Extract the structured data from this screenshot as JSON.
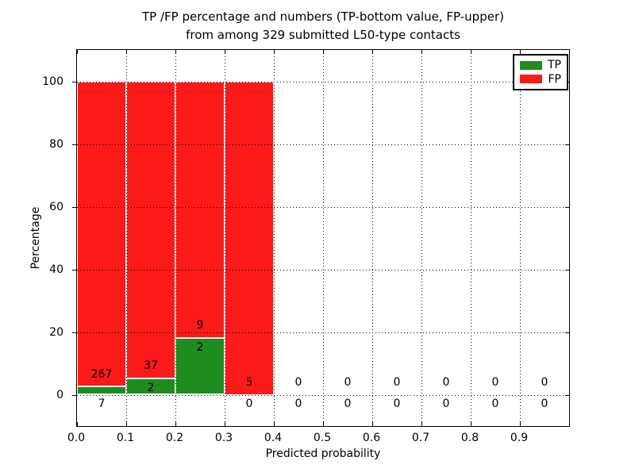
{
  "chart_data": {
    "type": "bar",
    "stacked": true,
    "title_line1": "TP /FP percentage and numbers (TP-bottom value, FP-upper)",
    "title_line2": "from among 329 submitted L50-type contacts",
    "total_submitted": 329,
    "xlabel": "Predicted probability",
    "ylabel": "Percentage",
    "xlim": [
      0.0,
      1.0
    ],
    "ylim": [
      -10,
      110
    ],
    "xticks": [
      0.0,
      0.1,
      0.2,
      0.3,
      0.4,
      0.5,
      0.6,
      0.7,
      0.8,
      0.9
    ],
    "xtick_labels": [
      "0.0",
      "0.1",
      "0.2",
      "0.3",
      "0.4",
      "0.5",
      "0.6",
      "0.7",
      "0.8",
      "0.9"
    ],
    "yticks": [
      0,
      20,
      40,
      60,
      80,
      100
    ],
    "ytick_labels": [
      "0",
      "20",
      "40",
      "60",
      "80",
      "100"
    ],
    "grid": "dotted",
    "legend": {
      "position": "upper right",
      "items": [
        {
          "label": "TP",
          "color": "#1e8c1e"
        },
        {
          "label": "FP",
          "color": "#fb1a1a"
        }
      ]
    },
    "series": [
      {
        "name": "TP",
        "color": "#1e8c1e",
        "values_pct": [
          2.55,
          5.13,
          18.18,
          0,
          0,
          0,
          0,
          0,
          0,
          0
        ]
      },
      {
        "name": "FP",
        "color": "#fb1a1a",
        "values_pct": [
          97.45,
          94.87,
          81.82,
          100,
          0,
          0,
          0,
          0,
          0,
          0
        ]
      }
    ],
    "bins": [
      {
        "range": [
          0.0,
          0.1
        ],
        "tp": 7,
        "fp": 267,
        "tp_pct": 2.55,
        "fp_pct": 97.45
      },
      {
        "range": [
          0.1,
          0.2
        ],
        "tp": 2,
        "fp": 37,
        "tp_pct": 5.13,
        "fp_pct": 94.87
      },
      {
        "range": [
          0.2,
          0.3
        ],
        "tp": 2,
        "fp": 9,
        "tp_pct": 18.18,
        "fp_pct": 81.82
      },
      {
        "range": [
          0.3,
          0.4
        ],
        "tp": 0,
        "fp": 5,
        "tp_pct": 0,
        "fp_pct": 100
      },
      {
        "range": [
          0.4,
          0.5
        ],
        "tp": 0,
        "fp": 0,
        "tp_pct": 0,
        "fp_pct": 0
      },
      {
        "range": [
          0.5,
          0.6
        ],
        "tp": 0,
        "fp": 0,
        "tp_pct": 0,
        "fp_pct": 0
      },
      {
        "range": [
          0.6,
          0.7
        ],
        "tp": 0,
        "fp": 0,
        "tp_pct": 0,
        "fp_pct": 0
      },
      {
        "range": [
          0.7,
          0.8
        ],
        "tp": 0,
        "fp": 0,
        "tp_pct": 0,
        "fp_pct": 0
      },
      {
        "range": [
          0.8,
          0.9
        ],
        "tp": 0,
        "fp": 0,
        "tp_pct": 0,
        "fp_pct": 0
      },
      {
        "range": [
          0.9,
          1.0
        ],
        "tp": 0,
        "fp": 0,
        "tp_pct": 0,
        "fp_pct": 0
      }
    ],
    "colors": {
      "tp": "#1e8c1e",
      "fp": "#fb1a1a",
      "grid": "#000000",
      "text": "#000000",
      "background": "#ffffff"
    }
  }
}
